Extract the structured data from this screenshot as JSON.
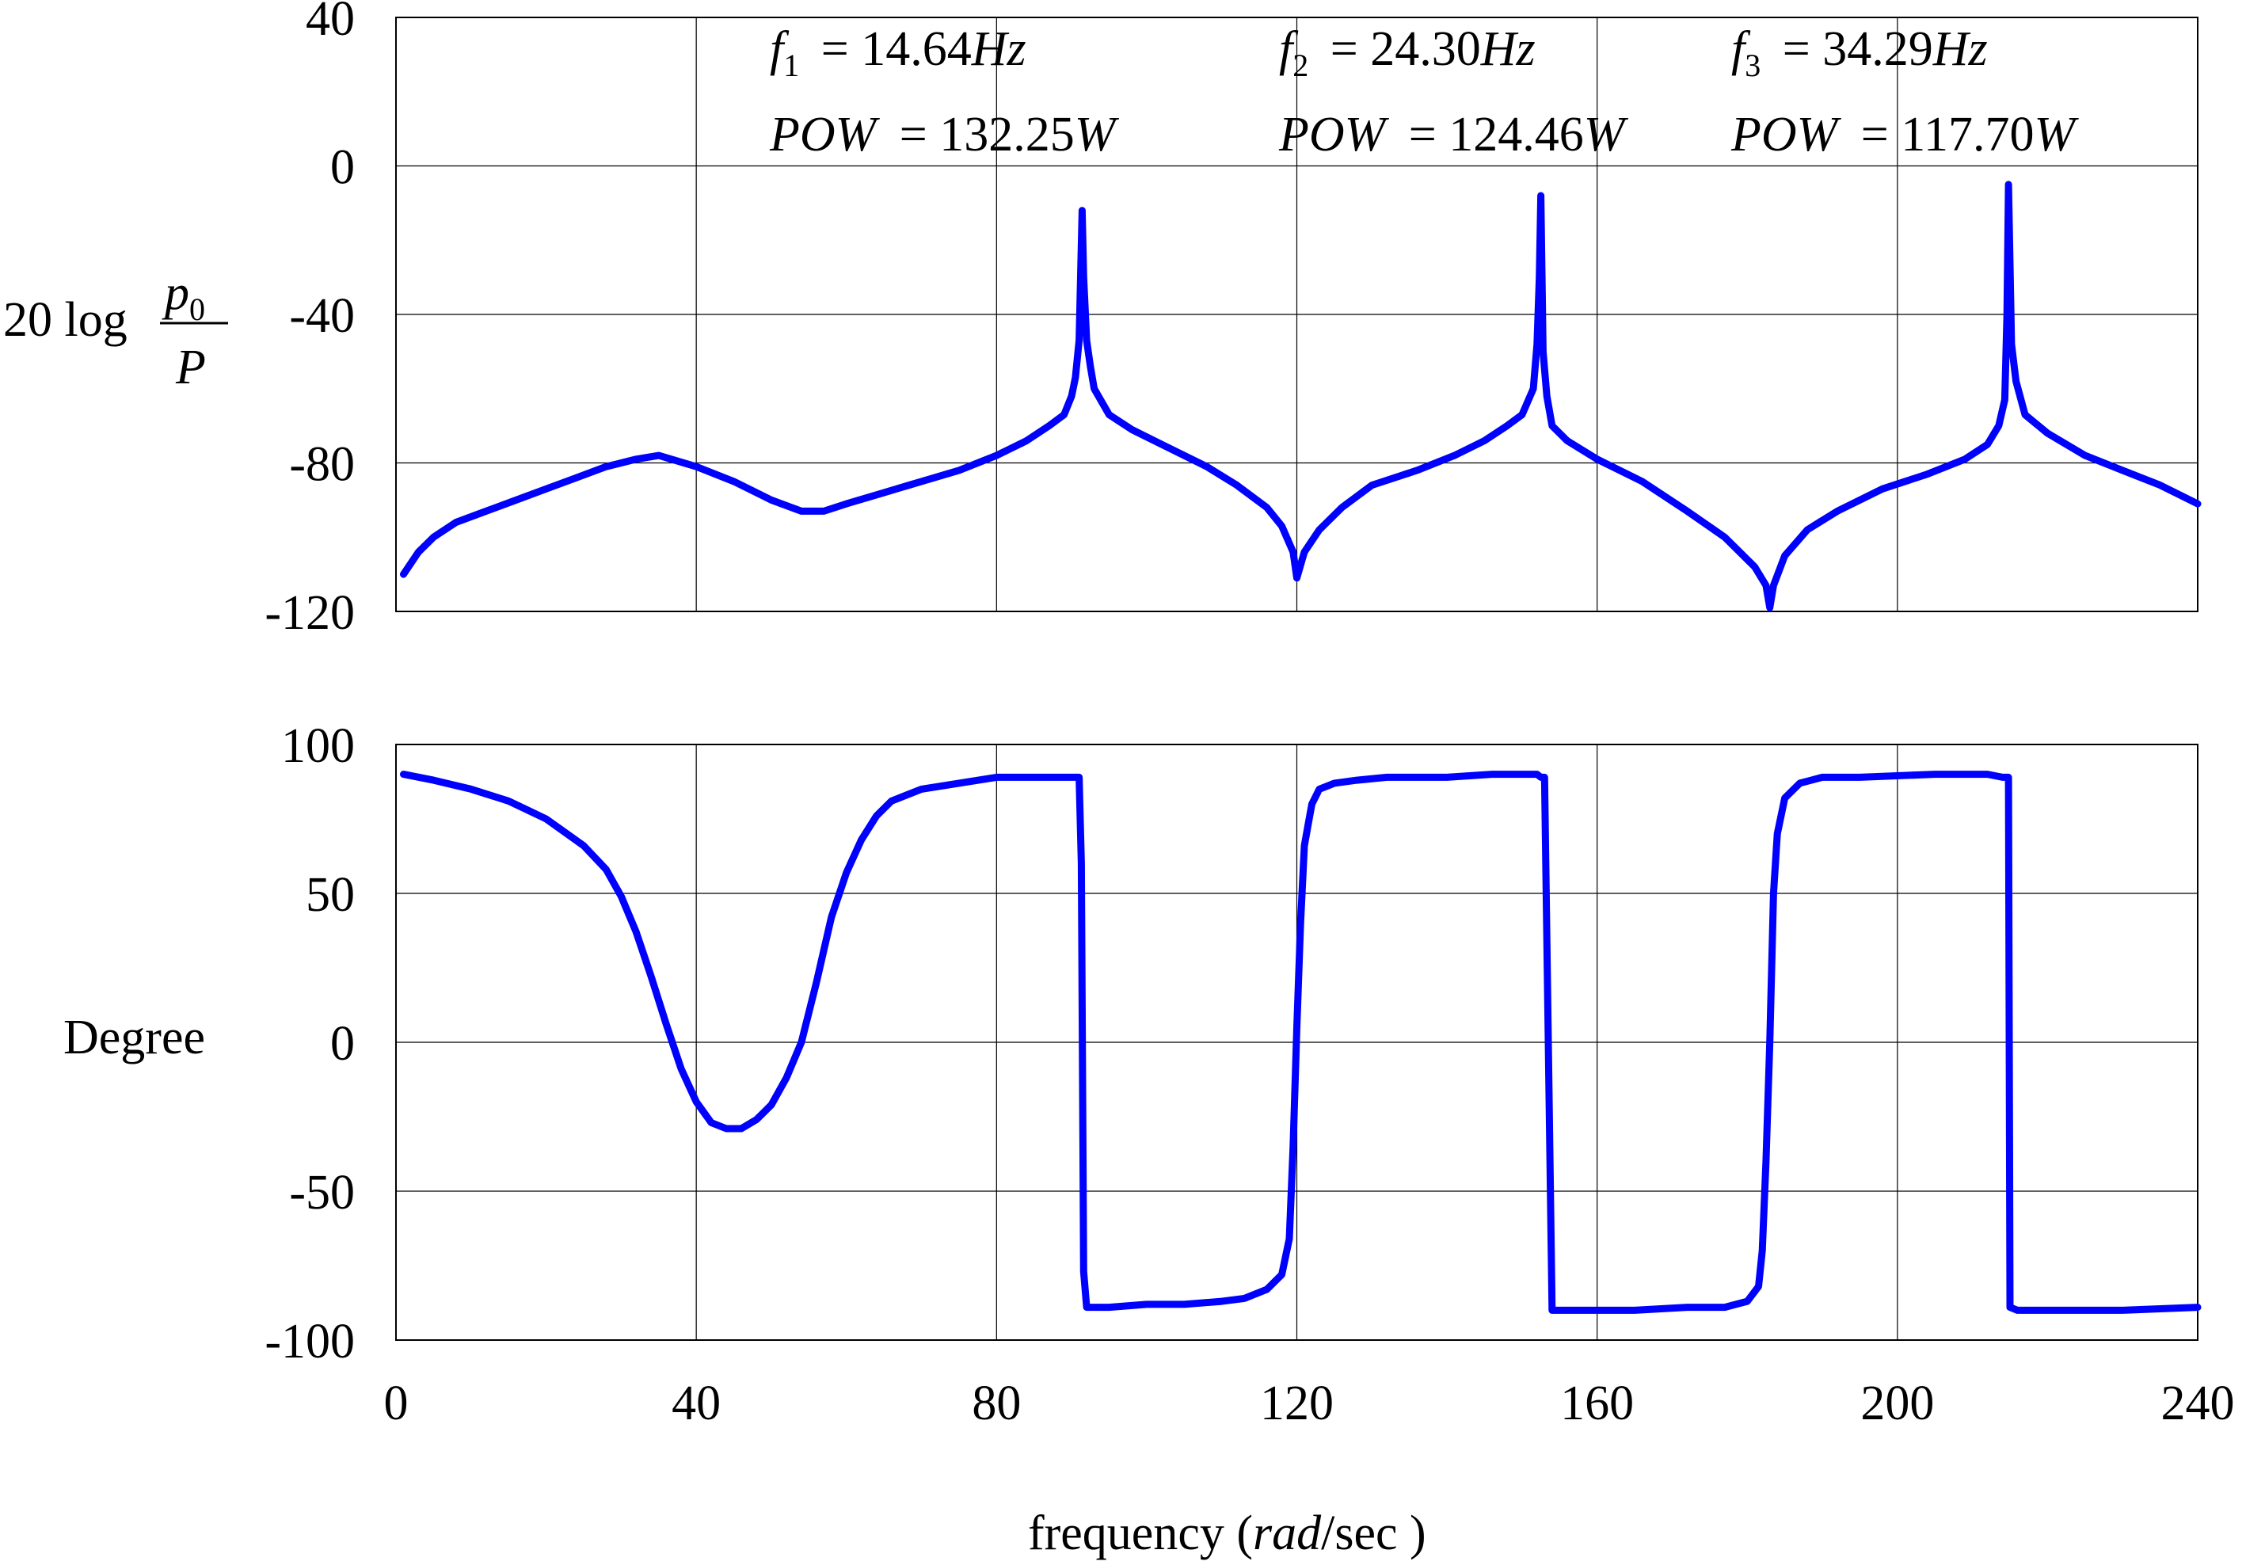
{
  "chart_data": [
    {
      "type": "line",
      "title": "",
      "xlabel": "",
      "ylabel": "20 log p0 / P",
      "ylabel_parts": {
        "prefix": "20 log",
        "numerator": "p",
        "numerator_sub": "0",
        "denominator": "P"
      },
      "xlim": [
        0,
        240
      ],
      "ylim": [
        -120,
        40
      ],
      "xticks": [
        0,
        40,
        80,
        120,
        160,
        200,
        240
      ],
      "xtick_labels_shown": false,
      "yticks": [
        40,
        0,
        -40,
        -80,
        -120
      ],
      "ytick_labels": [
        "40",
        "0",
        "-40",
        "-80",
        "-120"
      ],
      "grid": true,
      "line_color": "#0000ff",
      "annotations": [
        {
          "freq_label": "f",
          "freq_sub": "1",
          "freq_value": "= 14.64",
          "freq_unit": "Hz",
          "pow_label": "POW",
          "pow_value": "= 132.25",
          "pow_unit": "W"
        },
        {
          "freq_label": "f",
          "freq_sub": "2",
          "freq_value": "= 24.30",
          "freq_unit": "Hz",
          "pow_label": "POW",
          "pow_value": "= 124.46",
          "pow_unit": "W"
        },
        {
          "freq_label": "f",
          "freq_sub": "3",
          "freq_value": "= 34.29",
          "freq_unit": "Hz",
          "pow_label": "POW",
          "pow_value": "= 117.70",
          "pow_unit": "W"
        }
      ],
      "series": [
        {
          "x": [
            1,
            3,
            5,
            8,
            12,
            16,
            20,
            24,
            28,
            32,
            35,
            40,
            45,
            50,
            54,
            57,
            60,
            65,
            70,
            75,
            80,
            84,
            87,
            89,
            90,
            90.5,
            91,
            91.4,
            91.6,
            92,
            92.5,
            93,
            95,
            98,
            102,
            108,
            112,
            116,
            118,
            119.5,
            120,
            121,
            123,
            126,
            130,
            136,
            141,
            145,
            148,
            150,
            151.5,
            152,
            152.3,
            152.5,
            152.8,
            153.3,
            154,
            156,
            160,
            166,
            172,
            177,
            181,
            182.5,
            183,
            183.5,
            185,
            188,
            192,
            198,
            204,
            209,
            212,
            213.5,
            214.3,
            214.6,
            214.8,
            215.2,
            215.8,
            217,
            220,
            225,
            230,
            235,
            240
          ],
          "y": [
            -110,
            -104,
            -100,
            -96,
            -93,
            -90,
            -87,
            -84,
            -81,
            -79,
            -78,
            -81,
            -85,
            -90,
            -93,
            -93,
            -91,
            -88,
            -85,
            -82,
            -78,
            -74,
            -70,
            -67,
            -62,
            -57,
            -47,
            -12,
            -30,
            -47,
            -54,
            -60,
            -67,
            -71,
            -75,
            -81,
            -86,
            -92,
            -97,
            -104,
            -111,
            -104,
            -98,
            -92,
            -86,
            -82,
            -78,
            -74,
            -70,
            -67,
            -60,
            -48,
            -30,
            -8,
            -50,
            -62,
            -70,
            -74,
            -79,
            -85,
            -93,
            -100,
            -108,
            -113,
            -119,
            -113,
            -105,
            -98,
            -93,
            -87,
            -83,
            -79,
            -75,
            -70,
            -63,
            -40,
            -5,
            -48,
            -58,
            -67,
            -72,
            -78,
            -82,
            -86,
            -91
          ]
        }
      ]
    },
    {
      "type": "line",
      "title": "",
      "xlabel": "frequency ( rad/sec )",
      "xlabel_parts": {
        "before": "frequency (",
        "italic": "rad",
        "after": "/sec  )"
      },
      "ylabel": "Degree",
      "xlim": [
        0,
        240
      ],
      "ylim": [
        -100,
        100
      ],
      "xticks": [
        0,
        40,
        80,
        120,
        160,
        200,
        240
      ],
      "xtick_labels": [
        "0",
        "40",
        "80",
        "120",
        "160",
        "200",
        "240"
      ],
      "yticks": [
        100,
        50,
        0,
        -50,
        -100
      ],
      "ytick_labels": [
        "100",
        "50",
        "0",
        "-50",
        "-100"
      ],
      "grid": true,
      "line_color": "#0000ff",
      "series": [
        {
          "x": [
            1,
            5,
            10,
            15,
            20,
            25,
            28,
            30,
            32,
            34,
            36,
            38,
            40,
            42,
            44,
            46,
            48,
            50,
            52,
            54,
            56,
            57,
            58,
            60,
            62,
            64,
            66,
            70,
            75,
            80,
            85,
            88,
            90,
            91,
            91.3,
            91.6,
            92,
            93,
            95,
            100,
            105,
            110,
            113,
            116,
            118,
            119,
            119.5,
            120,
            120.5,
            121,
            121.5,
            122,
            123,
            125,
            128,
            132,
            140,
            146,
            150,
            152,
            152.5,
            153,
            154,
            158,
            165,
            172,
            177,
            180,
            181.5,
            182,
            182.5,
            183,
            183.5,
            184,
            185,
            187,
            190,
            195,
            205,
            212,
            214,
            214.6,
            214.8,
            215,
            216,
            220,
            230,
            240
          ],
          "y": [
            90,
            88,
            85,
            81,
            75,
            66,
            58,
            49,
            37,
            22,
            6,
            -9,
            -20,
            -27,
            -29,
            -29,
            -26,
            -21,
            -12,
            0,
            20,
            31,
            42,
            57,
            68,
            76,
            81,
            85,
            87,
            89,
            89,
            89,
            89,
            89,
            60,
            -77,
            -89,
            -89,
            -89,
            -88,
            -88,
            -87,
            -86,
            -83,
            -78,
            -66,
            -35,
            5,
            40,
            66,
            73,
            80,
            85,
            87,
            88,
            89,
            89,
            90,
            90,
            90,
            89,
            89,
            -90,
            -90,
            -90,
            -89,
            -89,
            -87,
            -82,
            -70,
            -40,
            0,
            50,
            70,
            82,
            87,
            89,
            89,
            90,
            90,
            89,
            89,
            89,
            -89,
            -90,
            -90,
            -90,
            -89
          ]
        }
      ]
    }
  ]
}
